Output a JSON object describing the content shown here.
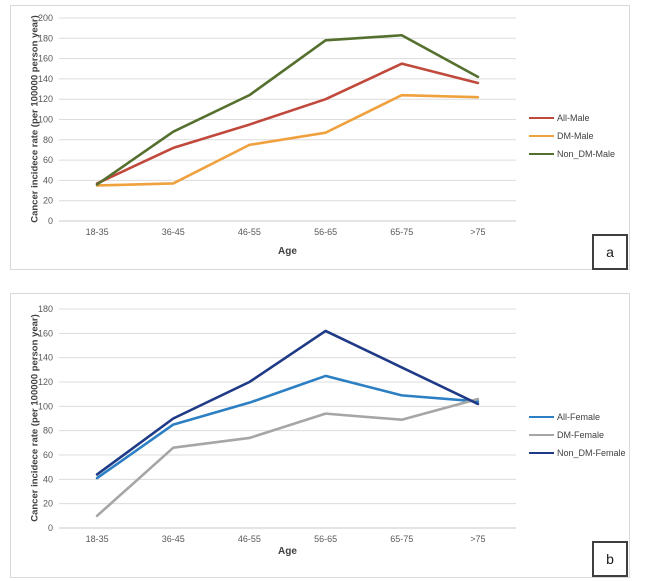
{
  "panels": [
    {
      "corner_label": "a"
    },
    {
      "corner_label": "b"
    }
  ],
  "colors": {
    "gridline": "#dcdcdc",
    "axis_line": "#c9c9c9",
    "tick_text": "#595959",
    "panel_border": "#d9d9d9"
  },
  "chart_data": [
    {
      "type": "line",
      "title": "",
      "xlabel": "Age",
      "ylabel": "Cancer incidece rate (per 100000 person year)",
      "categories": [
        "18-35",
        "36-45",
        "46-55",
        "56-65",
        "65-75",
        ">75"
      ],
      "ylim": [
        0,
        200
      ],
      "ytick_step": 20,
      "grid": true,
      "legend_position": "right",
      "series": [
        {
          "name": "All-Male",
          "color": "#C0493C",
          "values": [
            37,
            72,
            95,
            120,
            155,
            136
          ]
        },
        {
          "name": "DM-Male",
          "color": "#EFA13E",
          "values": [
            35,
            37,
            75,
            87,
            124,
            122
          ]
        },
        {
          "name": "Non_DM-Male",
          "color": "#55702E",
          "values": [
            36,
            88,
            124,
            178,
            183,
            142
          ]
        }
      ]
    },
    {
      "type": "line",
      "title": "",
      "xlabel": "Age",
      "ylabel": "Cancer incidece rate (per 100000 person year)",
      "categories": [
        "18-35",
        "36-45",
        "46-55",
        "56-65",
        "65-75",
        ">75"
      ],
      "ylim": [
        0,
        180
      ],
      "ytick_step": 20,
      "grid": true,
      "legend_position": "right",
      "series": [
        {
          "name": "All-Female",
          "color": "#2C7FC3",
          "values": [
            41,
            85,
            103,
            125,
            109,
            104
          ]
        },
        {
          "name": "DM-Female",
          "color": "#A6A6A6",
          "values": [
            10,
            66,
            74,
            94,
            89,
            106
          ]
        },
        {
          "name": "Non_DM-Female",
          "color": "#1F3A86",
          "values": [
            44,
            90,
            120,
            162,
            132,
            102
          ]
        }
      ]
    }
  ]
}
